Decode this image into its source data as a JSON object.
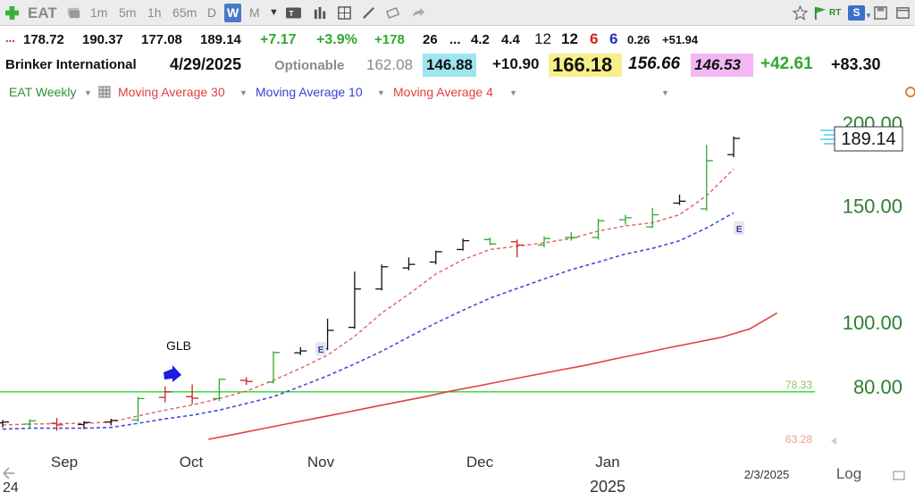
{
  "toolbar": {
    "symbol": "EAT",
    "intervals": [
      "1m",
      "5m",
      "1h",
      "65m",
      "D",
      "W",
      "M"
    ],
    "active_interval": "W",
    "right_rt": "RT",
    "right_s": "S"
  },
  "quote": {
    "prefix": "...",
    "open": "178.72",
    "high": "190.37",
    "low": "177.08",
    "close": "189.14",
    "change": "+7.17",
    "change_pct": "+3.9%",
    "pts": "+178",
    "v1": "26",
    "v2": "...",
    "v3": "4.2",
    "v4": "4.4",
    "v5": "12",
    "v6": "12",
    "v7": "6",
    "v8": "6",
    "v9": "0.26",
    "v10": "+51.94"
  },
  "info": {
    "company": "Brinker International",
    "date": "4/29/2025",
    "optionable": "Optionable",
    "val1": "162.08",
    "val2": "146.88",
    "val3": "+10.90",
    "val4": "166.18",
    "val5": "156.66",
    "val6": "146.53",
    "val7": "+42.61",
    "val8": "+83.30"
  },
  "legend": {
    "series_main": "EAT Weekly",
    "ma30": "Moving Average 30",
    "ma10": "Moving Average 10",
    "ma4": "Moving Average 4"
  },
  "colors": {
    "up": "#2fa82f",
    "neutral": "#111111",
    "down": "#d02020",
    "ma30": "#e04040",
    "ma10": "#4848e0",
    "ma4": "#e06060",
    "glb_line": "#44dd44",
    "axis_label": "#2f7f2f"
  },
  "chart_data": {
    "type": "ohlc",
    "scale": "log",
    "ylim": [
      62,
      205
    ],
    "y_ticks": [
      200,
      150,
      100,
      80
    ],
    "y_tick_labels": [
      "200.00",
      "150.00",
      "100.00",
      "80.00"
    ],
    "x_labels": [
      "Sep",
      "Oct",
      "Nov",
      "Dec",
      "Jan"
    ],
    "x_year_label": "2025",
    "x_start_label": "24",
    "x_end_label": "2/3/2025",
    "log_label": "Log",
    "last_price": "189.14",
    "glb_level": 78.33,
    "glb_label": "78.33",
    "lower_level_label": "63.28",
    "glb_annotation": "GLB",
    "earnings_label": "E",
    "bars": [
      {
        "o": 70.3,
        "h": 71.0,
        "l": 69.2,
        "c": 70.5,
        "color": "neutral"
      },
      {
        "o": 70.0,
        "h": 71.2,
        "l": 68.9,
        "c": 70.8,
        "color": "up"
      },
      {
        "o": 70.2,
        "h": 71.5,
        "l": 68.4,
        "c": 69.8,
        "color": "down"
      },
      {
        "o": 69.9,
        "h": 70.7,
        "l": 68.8,
        "c": 70.4,
        "color": "neutral"
      },
      {
        "o": 70.5,
        "h": 71.3,
        "l": 69.7,
        "c": 70.9,
        "color": "neutral"
      },
      {
        "o": 71.0,
        "h": 77.0,
        "l": 70.6,
        "c": 76.5,
        "color": "up"
      },
      {
        "o": 76.8,
        "h": 79.8,
        "l": 75.5,
        "c": 78.3,
        "color": "down"
      },
      {
        "o": 77.0,
        "h": 80.4,
        "l": 75.0,
        "c": 76.6,
        "color": "down"
      },
      {
        "o": 76.5,
        "h": 82.0,
        "l": 75.8,
        "c": 81.8,
        "color": "up"
      },
      {
        "o": 81.5,
        "h": 82.4,
        "l": 80.2,
        "c": 81.2,
        "color": "down"
      },
      {
        "o": 81.0,
        "h": 90.2,
        "l": 80.6,
        "c": 89.8,
        "color": "up"
      },
      {
        "o": 89.7,
        "h": 91.5,
        "l": 89.0,
        "c": 90.3,
        "color": "neutral"
      },
      {
        "o": 91.0,
        "h": 101.0,
        "l": 90.5,
        "c": 97.0,
        "color": "neutral"
      },
      {
        "o": 98.0,
        "h": 119.0,
        "l": 97.5,
        "c": 112.0,
        "color": "neutral"
      },
      {
        "o": 112.0,
        "h": 122.0,
        "l": 111.5,
        "c": 121.0,
        "color": "neutral"
      },
      {
        "o": 120.5,
        "h": 125.0,
        "l": 119.5,
        "c": 122.0,
        "color": "neutral"
      },
      {
        "o": 123.0,
        "h": 128.0,
        "l": 122.0,
        "c": 127.5,
        "color": "neutral"
      },
      {
        "o": 128.5,
        "h": 133.5,
        "l": 128.0,
        "c": 132.5,
        "color": "neutral"
      },
      {
        "o": 133.0,
        "h": 134.0,
        "l": 130.5,
        "c": 131.0,
        "color": "up"
      },
      {
        "o": 132.0,
        "h": 133.0,
        "l": 125.0,
        "c": 130.5,
        "color": "down"
      },
      {
        "o": 130.5,
        "h": 134.5,
        "l": 129.5,
        "c": 133.5,
        "color": "up"
      },
      {
        "o": 134.0,
        "h": 136.5,
        "l": 132.5,
        "c": 134.0,
        "color": "up"
      },
      {
        "o": 134.0,
        "h": 143.0,
        "l": 133.0,
        "c": 142.0,
        "color": "up"
      },
      {
        "o": 142.5,
        "h": 145.0,
        "l": 140.0,
        "c": 143.5,
        "color": "up"
      },
      {
        "o": 139.0,
        "h": 148.5,
        "l": 138.5,
        "c": 145.0,
        "color": "up"
      },
      {
        "o": 151.0,
        "h": 155.5,
        "l": 150.0,
        "c": 152.0,
        "color": "neutral"
      },
      {
        "o": 148.0,
        "h": 185.0,
        "l": 147.0,
        "c": 175.0,
        "color": "up"
      },
      {
        "o": 178.72,
        "h": 190.37,
        "l": 177.08,
        "c": 189.14,
        "color": "neutral"
      }
    ],
    "ma4_series": [
      69.8,
      70.0,
      70.1,
      70.2,
      70.5,
      72.0,
      73.5,
      74.8,
      76.5,
      78.5,
      81.5,
      85.0,
      89.0,
      95.0,
      103.0,
      110.0,
      118.0,
      124.0,
      128.5,
      130.0,
      131.5,
      133.5,
      137.0,
      139.5,
      141.0,
      145.0,
      155.0,
      170.0
    ],
    "ma10_series": [
      68.8,
      69.0,
      69.0,
      69.0,
      69.2,
      70.2,
      71.3,
      72.2,
      73.5,
      75.2,
      77.0,
      79.8,
      82.8,
      86.3,
      90.2,
      94.8,
      99.5,
      104.0,
      108.5,
      112.2,
      116.0,
      119.8,
      123.0,
      126.5,
      129.0,
      132.5,
      138.5,
      146.0
    ],
    "ma30_start_bar": 7.6,
    "ma30_series": [
      66.4,
      67.6,
      68.9,
      70.2,
      71.5,
      72.8,
      74.2,
      75.6,
      77.0,
      78.6,
      80.0,
      81.5,
      83.0,
      84.5,
      86.0,
      87.8,
      89.5,
      91.3,
      93.0,
      94.8,
      97.5,
      103.0
    ]
  }
}
